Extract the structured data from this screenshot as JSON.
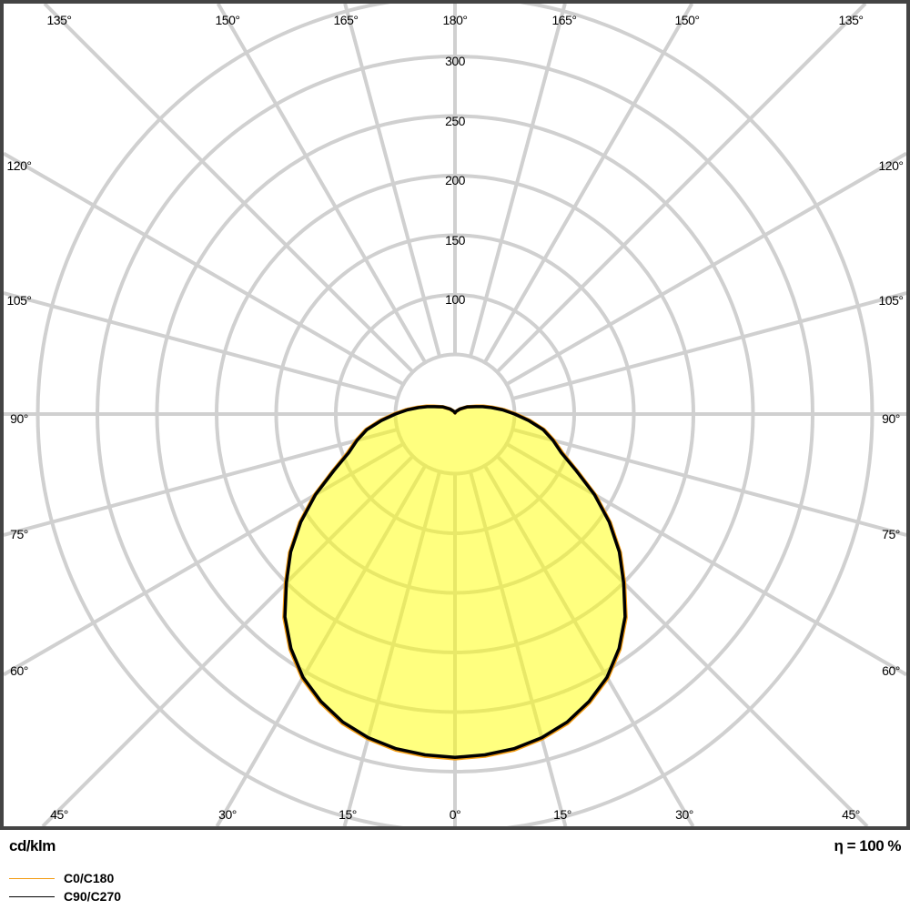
{
  "chart_data": {
    "type": "polar",
    "unit_label": "cd/klm",
    "efficiency_label": "η = 100 %",
    "radial_ticks": [
      100,
      150,
      200,
      250,
      300
    ],
    "radial_grid": [
      50,
      100,
      150,
      200,
      250,
      300,
      350
    ],
    "rlim": [
      0,
      350
    ],
    "angle_step_deg": 15,
    "angle_labels": {
      "top": [
        "135°",
        "150°",
        "165°",
        "180°",
        "165°",
        "150°",
        "135°"
      ],
      "left": [
        "120°",
        "105°",
        "90°",
        "75°",
        "60°"
      ],
      "right": [
        "120°",
        "105°",
        "90°",
        "75°",
        "60°"
      ],
      "bottom": [
        "45°",
        "30°",
        "15°",
        "0°",
        "15°",
        "30°",
        "45°"
      ]
    },
    "angles_deg": [
      0,
      5,
      10,
      15,
      20,
      25,
      30,
      35,
      40,
      45,
      50,
      55,
      60,
      65,
      70,
      75,
      80,
      85,
      90,
      95,
      100,
      105,
      110,
      120,
      135,
      150,
      165,
      180
    ],
    "series": [
      {
        "name": "C0/C180",
        "color": "#f39c12",
        "values": [
          289,
          288,
          286,
          282,
          276,
          267,
          256,
          241,
          223,
          201,
          181,
          159,
          136,
          113,
          96,
          86,
          76,
          63,
          51,
          41,
          32,
          25,
          19,
          12,
          6,
          3,
          2,
          1
        ]
      },
      {
        "name": "C90/C270",
        "color": "#000000",
        "values": [
          288,
          287,
          285,
          281,
          275,
          266,
          255,
          240,
          222,
          200,
          180,
          158,
          135,
          112,
          95,
          85,
          75,
          62,
          50,
          40,
          31,
          24,
          18,
          12,
          6,
          3,
          2,
          1
        ]
      }
    ],
    "fill_color": "#ffff00",
    "grid": true,
    "legend_placement": "bottom-left"
  }
}
